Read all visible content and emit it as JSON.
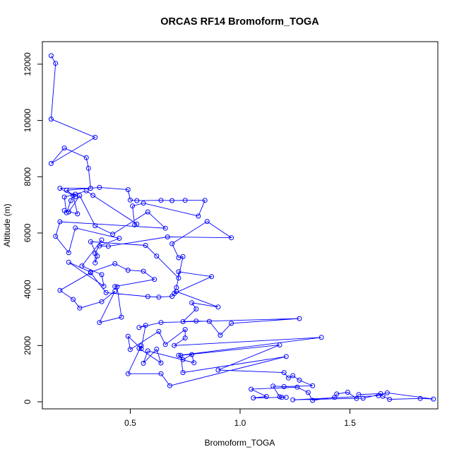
{
  "chart_data": {
    "type": "line",
    "title": "ORCAS RF14 Bromoform_TOGA",
    "xlabel": "Bromoform_TOGA",
    "ylabel": "Altitude (m)",
    "xlim": [
      0.1,
      1.9
    ],
    "ylim": [
      -250,
      12800
    ],
    "xticks": [
      0.5,
      1.0,
      1.5
    ],
    "xtick_labels": [
      "0.5",
      "1.0",
      "1.5"
    ],
    "yticks": [
      0,
      2000,
      4000,
      6000,
      8000,
      10000,
      12000
    ],
    "ytick_labels": [
      "0",
      "2000",
      "4000",
      "6000",
      "8000",
      "10000",
      "12000"
    ],
    "grid": false,
    "color": "#0000ff",
    "series": [
      {
        "name": "Bromoform_TOGA",
        "points": [
          [
            0.14,
            12300
          ],
          [
            0.16,
            12030
          ],
          [
            0.14,
            10050
          ],
          [
            0.34,
            9400
          ],
          [
            0.14,
            8470
          ],
          [
            0.2,
            9020
          ],
          [
            0.3,
            8680
          ],
          [
            0.31,
            8300
          ],
          [
            0.32,
            7590
          ],
          [
            0.18,
            7590
          ],
          [
            0.25,
            7290
          ],
          [
            0.21,
            7520
          ],
          [
            0.36,
            7620
          ],
          [
            0.49,
            7540
          ],
          [
            0.5,
            7170
          ],
          [
            0.53,
            7150
          ],
          [
            0.64,
            7160
          ],
          [
            0.69,
            7150
          ],
          [
            0.75,
            7160
          ],
          [
            0.84,
            7160
          ],
          [
            0.81,
            6600
          ],
          [
            0.56,
            7060
          ],
          [
            0.51,
            6960
          ],
          [
            0.52,
            6290
          ],
          [
            0.53,
            6320
          ],
          [
            0.33,
            7340
          ],
          [
            0.3,
            7500
          ],
          [
            0.25,
            7380
          ],
          [
            0.2,
            7280
          ],
          [
            0.21,
            6720
          ],
          [
            0.23,
            7150
          ],
          [
            0.24,
            7330
          ],
          [
            0.26,
            6680
          ],
          [
            0.2,
            6800
          ],
          [
            0.22,
            6750
          ],
          [
            0.27,
            7330
          ],
          [
            0.34,
            6260
          ],
          [
            0.42,
            5960
          ],
          [
            0.58,
            6750
          ],
          [
            0.66,
            6170
          ],
          [
            0.18,
            6400
          ],
          [
            0.16,
            5880
          ],
          [
            0.22,
            5300
          ],
          [
            0.25,
            6180
          ],
          [
            0.45,
            5810
          ],
          [
            0.36,
            5540
          ],
          [
            0.4,
            5530
          ],
          [
            0.67,
            5860
          ],
          [
            0.96,
            5830
          ],
          [
            0.85,
            6410
          ],
          [
            0.69,
            5620
          ],
          [
            0.72,
            5120
          ],
          [
            0.74,
            5160
          ],
          [
            0.71,
            4060
          ],
          [
            0.7,
            3850
          ],
          [
            0.87,
            4450
          ],
          [
            0.72,
            4620
          ],
          [
            0.72,
            4400
          ],
          [
            0.62,
            5180
          ],
          [
            0.57,
            5560
          ],
          [
            0.32,
            5690
          ],
          [
            0.35,
            5180
          ],
          [
            0.34,
            4940
          ],
          [
            0.34,
            5270
          ],
          [
            0.37,
            5750
          ],
          [
            0.28,
            4830
          ],
          [
            0.37,
            4520
          ],
          [
            0.38,
            4110
          ],
          [
            0.22,
            4960
          ],
          [
            0.32,
            4610
          ],
          [
            0.43,
            4910
          ],
          [
            0.49,
            4680
          ],
          [
            0.56,
            4640
          ],
          [
            0.61,
            4350
          ],
          [
            0.43,
            4100
          ],
          [
            0.44,
            4090
          ],
          [
            0.46,
            3010
          ],
          [
            0.36,
            2820
          ],
          [
            0.43,
            3930
          ],
          [
            0.37,
            3560
          ],
          [
            0.27,
            3330
          ],
          [
            0.24,
            3640
          ],
          [
            0.18,
            3960
          ],
          [
            0.32,
            4590
          ],
          [
            0.39,
            3880
          ],
          [
            0.58,
            3740
          ],
          [
            0.63,
            3720
          ],
          [
            0.69,
            3750
          ],
          [
            0.71,
            3920
          ],
          [
            0.9,
            3370
          ],
          [
            0.78,
            3520
          ],
          [
            0.8,
            3300
          ],
          [
            0.74,
            2850
          ],
          [
            0.8,
            2870
          ],
          [
            0.86,
            2860
          ],
          [
            0.91,
            2370
          ],
          [
            0.96,
            2790
          ],
          [
            1.27,
            2960
          ],
          [
            0.64,
            2820
          ],
          [
            0.54,
            2640
          ],
          [
            0.57,
            2720
          ],
          [
            0.55,
            1890
          ],
          [
            0.49,
            2330
          ],
          [
            0.5,
            1860
          ],
          [
            0.63,
            2500
          ],
          [
            0.66,
            2040
          ],
          [
            0.75,
            2570
          ],
          [
            0.75,
            2270
          ],
          [
            0.7,
            2000
          ],
          [
            1.37,
            2290
          ],
          [
            0.72,
            1650
          ],
          [
            0.74,
            1500
          ],
          [
            0.78,
            1680
          ],
          [
            0.79,
            1390
          ],
          [
            0.58,
            1810
          ],
          [
            0.56,
            1370
          ],
          [
            0.62,
            1870
          ],
          [
            0.64,
            1380
          ],
          [
            0.54,
            1900
          ],
          [
            0.55,
            1990
          ],
          [
            0.49,
            1000
          ],
          [
            0.64,
            1000
          ],
          [
            0.68,
            570
          ],
          [
            1.21,
            1610
          ],
          [
            0.74,
            1040
          ],
          [
            0.73,
            1650
          ],
          [
            1.18,
            2020
          ],
          [
            0.9,
            1130
          ],
          [
            1.2,
            1040
          ],
          [
            1.22,
            850
          ],
          [
            1.24,
            930
          ],
          [
            1.27,
            770
          ],
          [
            1.33,
            570
          ],
          [
            1.2,
            540
          ],
          [
            1.15,
            560
          ],
          [
            1.18,
            180
          ],
          [
            1.21,
            160
          ],
          [
            1.19,
            160
          ],
          [
            1.06,
            140
          ],
          [
            1.12,
            190
          ],
          [
            1.05,
            450
          ],
          [
            1.26,
            520
          ],
          [
            1.31,
            330
          ],
          [
            1.33,
            50
          ],
          [
            1.43,
            160
          ],
          [
            1.44,
            280
          ],
          [
            1.49,
            340
          ],
          [
            1.53,
            120
          ],
          [
            1.54,
            260
          ],
          [
            1.64,
            290
          ],
          [
            1.65,
            200
          ],
          [
            1.68,
            90
          ],
          [
            1.82,
            120
          ],
          [
            1.88,
            100
          ],
          [
            1.67,
            320
          ],
          [
            1.56,
            130
          ],
          [
            1.24,
            70
          ],
          [
            1.63,
            220
          ]
        ]
      }
    ]
  }
}
